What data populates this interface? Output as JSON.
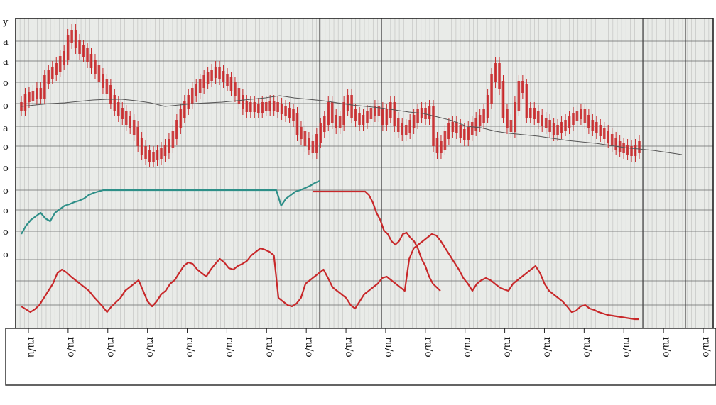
{
  "chart_data": {
    "type": "line",
    "title": "",
    "xlabel": "",
    "ylabel": "",
    "y_tick_labels": [
      "y",
      "a",
      "a",
      "o",
      "o",
      "a",
      "o",
      "o",
      "o",
      "o",
      "o",
      "o"
    ],
    "x_tick_labels": [
      "ru/u",
      "ru/o",
      "ru/o",
      "ru/o",
      "ru/o",
      "ru/o",
      "ru/o",
      "ru/o",
      "ru/o",
      "ru/o",
      "ru/o",
      "ru/o",
      "ru/o",
      "ru/o",
      "ru/o",
      "ru/o",
      "ru/o",
      "ru/o"
    ],
    "grid": true,
    "x_count": 200,
    "colors": {
      "red": "#c8282a",
      "teal": "#2e8f88",
      "green": "#3fa35a",
      "dark": "#555555",
      "grid": "#9a9a9a"
    },
    "series": [
      {
        "name": "",
        "color": "#c8282a",
        "style": "candlestick",
        "values": [
          150,
          138,
          136,
          134,
          130,
          133,
          112,
          105,
          100,
          95,
          85,
          78,
          55,
          48,
          62,
          70,
          74,
          82,
          90,
          98,
          110,
          118,
          126,
          140,
          150,
          158,
          162,
          170,
          175,
          185,
          200,
          212,
          218,
          222,
          220,
          218,
          214,
          210,
          202,
          190,
          175,
          160,
          148,
          140,
          130,
          125,
          118,
          112,
          108,
          104,
          100,
          106,
          110,
          115,
          122,
          130,
          140,
          148,
          152,
          150,
          152,
          153,
          150,
          150,
          148,
          150,
          152,
          155,
          158,
          160,
          165,
          185,
          190,
          200,
          205,
          210,
          195,
          180,
          170,
          150,
          168,
          175,
          170,
          150,
          140,
          160,
          165,
          170,
          168,
          162,
          158,
          155,
          158,
          170,
          160,
          150,
          172,
          180,
          185,
          182,
          175,
          168,
          160,
          158,
          162,
          155,
          200,
          210,
          205,
          190,
          180,
          178,
          182,
          188,
          192,
          185,
          178,
          172,
          168,
          160,
          140,
          110,
          95,
          120,
          160,
          175,
          180,
          150,
          120,
          125,
          160,
          158,
          162,
          168,
          172,
          175,
          180,
          185,
          182,
          178,
          175,
          170,
          165,
          162,
          160,
          168,
          175,
          178,
          182,
          186,
          190,
          195,
          200,
          205,
          208,
          210,
          212,
          214,
          210,
          205
        ]
      },
      {
        "name": "",
        "color": "#c8282a",
        "style": "line",
        "values": [
          432,
          436,
          440,
          436,
          430,
          420,
          410,
          400,
          385,
          380,
          384,
          390,
          395,
          400,
          405,
          410,
          418,
          425,
          432,
          440,
          432,
          426,
          420,
          410,
          405,
          400,
          395,
          410,
          425,
          432,
          425,
          415,
          410,
          400,
          395,
          385,
          375,
          370,
          372,
          380,
          385,
          390,
          380,
          372,
          365,
          370,
          378,
          380,
          375,
          372,
          368,
          360,
          355,
          350,
          352,
          355,
          360,
          420,
          425,
          430,
          432,
          428,
          420,
          400,
          395,
          390,
          385,
          380,
          392,
          405,
          410,
          415,
          420,
          430,
          435,
          425,
          415,
          410,
          405,
          400,
          392,
          390,
          395,
          400,
          405,
          410,
          365,
          350,
          345,
          340,
          335,
          330,
          332,
          340,
          350,
          360,
          370,
          380,
          392,
          400,
          410,
          400,
          395,
          392,
          395,
          400,
          405,
          408,
          410,
          400,
          395,
          390,
          385,
          380,
          375,
          385,
          400,
          410,
          415,
          420,
          425,
          432,
          440,
          438,
          432,
          430,
          435,
          437,
          440,
          442,
          444,
          445,
          446,
          447,
          448,
          449,
          450,
          450
        ]
      },
      {
        "name": "",
        "color": "#2e8f88",
        "style": "line",
        "values": [
          330,
          318,
          310,
          305,
          300,
          308,
          312,
          300,
          295,
          290,
          288,
          285,
          283,
          280,
          275,
          272,
          270,
          268,
          268,
          268,
          268,
          268,
          268,
          268,
          268,
          268,
          268,
          268,
          268,
          268,
          268,
          268,
          268,
          268,
          268,
          268,
          268,
          268,
          268,
          268,
          268,
          268,
          268,
          268,
          268,
          268,
          268,
          268,
          268,
          268,
          268,
          268,
          268,
          268,
          290,
          280,
          275,
          270,
          268,
          265,
          262,
          258,
          255
        ]
      },
      {
        "name": "",
        "color": "#c8282a",
        "style": "line",
        "values": [
          270,
          270,
          270,
          270,
          270,
          270,
          270,
          270,
          270,
          270,
          270,
          270,
          270,
          270,
          270,
          275,
          285,
          300,
          310,
          325,
          330,
          340,
          345,
          340,
          330,
          328,
          335,
          340,
          350,
          365,
          375,
          390,
          400,
          405,
          410
        ]
      },
      {
        "name": "",
        "color": "#555555",
        "style": "line",
        "values": [
          150,
          148,
          146,
          145,
          143,
          141,
          140,
          140,
          142,
          145,
          150,
          148,
          146,
          145,
          144,
          142,
          140,
          138,
          135,
          138,
          140,
          142,
          145,
          148,
          150,
          152,
          155,
          158,
          160,
          165,
          170,
          178,
          180,
          185,
          188,
          190,
          192,
          195,
          198,
          200,
          202,
          205,
          208,
          210,
          212,
          215,
          218
        ]
      }
    ]
  }
}
